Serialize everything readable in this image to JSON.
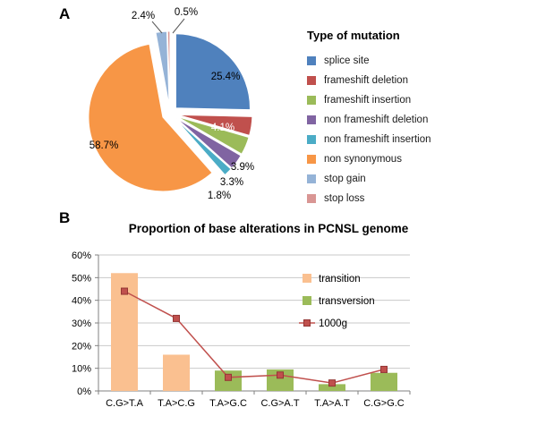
{
  "panelA": {
    "label": "A",
    "legend_title": "Type of mutation"
  },
  "panelB": {
    "label": "B",
    "title": "Proportion of base alterations in PCNSL genome"
  },
  "chart_data": [
    {
      "type": "pie",
      "panel": "A",
      "legend_title": "Type of mutation",
      "legend_position": "right",
      "slices": [
        {
          "name": "splice site",
          "value": 25.4,
          "pct_label": "25.4%",
          "color": "#4F81BD"
        },
        {
          "name": "frameshift deletion",
          "value": 4.1,
          "pct_label": "4.1%",
          "color": "#C0504D"
        },
        {
          "name": "frameshift insertion",
          "value": 3.9,
          "pct_label": "3.9%",
          "color": "#9BBB59"
        },
        {
          "name": "non frameshift deletion",
          "value": 3.3,
          "pct_label": "3.3%",
          "color": "#8064A2"
        },
        {
          "name": "non frameshift insertion",
          "value": 1.8,
          "pct_label": "1.8%",
          "color": "#4BACC6"
        },
        {
          "name": "non synonymous",
          "value": 58.7,
          "pct_label": "58.7%",
          "color": "#F79646"
        },
        {
          "name": "stop gain",
          "value": 2.4,
          "pct_label": "2.4%",
          "color": "#95B3D7"
        },
        {
          "name": "stop loss",
          "value": 0.5,
          "pct_label": "0.5%",
          "color": "#D99694"
        }
      ]
    },
    {
      "type": "bar",
      "panel": "B",
      "title": "Proportion of base alterations in PCNSL genome",
      "categories": [
        "C.G>T.A",
        "T.A>C.G",
        "T.A>G.C",
        "C.G>A.T",
        "T.A>A.T",
        "C.G>G.C"
      ],
      "series": [
        {
          "name": "transition",
          "kind": "bar",
          "color": "#FAC090",
          "values": [
            52,
            16,
            null,
            null,
            null,
            null
          ]
        },
        {
          "name": "transversion",
          "kind": "bar",
          "color": "#9BBB59",
          "values": [
            null,
            null,
            9,
            9.5,
            3,
            8
          ]
        },
        {
          "name": "1000g",
          "kind": "line",
          "color": "#C0504D",
          "values": [
            44,
            32,
            6,
            7,
            3.5,
            9.5
          ]
        }
      ],
      "ylim": [
        0,
        60
      ],
      "ytick_step": 10,
      "ytick_labels": [
        "0%",
        "10%",
        "20%",
        "30%",
        "40%",
        "50%",
        "60%"
      ],
      "grid": true,
      "legend_position": "inside-right"
    }
  ]
}
